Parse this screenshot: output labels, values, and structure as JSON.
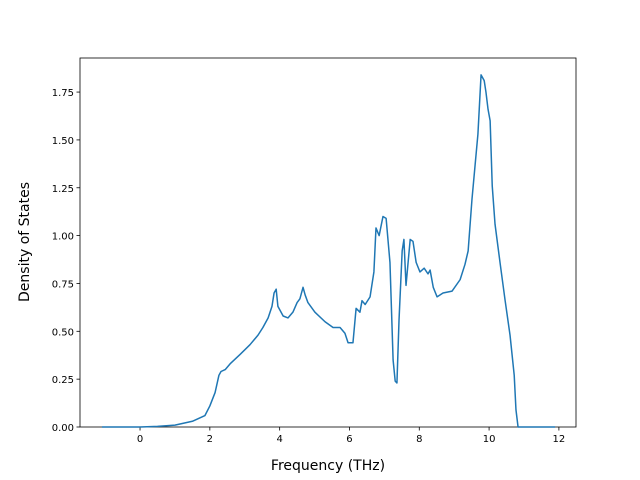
{
  "chart_data": {
    "type": "line",
    "xlabel": "Frequency (THz)",
    "ylabel": "Density of States",
    "x": [
      -1.09,
      0,
      0.5,
      1.0,
      1.5,
      1.86,
      2.0,
      2.15,
      2.26,
      2.32,
      2.44,
      2.58,
      2.87,
      3.15,
      3.38,
      3.52,
      3.67,
      3.78,
      3.84,
      3.9,
      3.95,
      4.1,
      4.24,
      4.38,
      4.5,
      4.58,
      4.67,
      4.73,
      4.81,
      5.01,
      5.3,
      5.53,
      5.73,
      5.87,
      5.96,
      6.1,
      6.19,
      6.3,
      6.36,
      6.45,
      6.59,
      6.7,
      6.76,
      6.85,
      6.96,
      7.05,
      7.16,
      7.25,
      7.31,
      7.36,
      7.42,
      7.51,
      7.56,
      7.62,
      7.74,
      7.82,
      7.91,
      8.02,
      8.14,
      8.25,
      8.31,
      8.4,
      8.51,
      8.68,
      8.94,
      9.17,
      9.31,
      9.4,
      9.51,
      9.6,
      9.68,
      9.77,
      9.86,
      9.91,
      9.97,
      10.03,
      10.09,
      10.17,
      10.32,
      10.46,
      10.6,
      10.72,
      10.77,
      10.83,
      11.89
    ],
    "series": [
      {
        "color": "#1f77b4",
        "values": [
          0,
          0,
          0.003,
          0.01,
          0.03,
          0.06,
          0.11,
          0.18,
          0.27,
          0.29,
          0.3,
          0.33,
          0.38,
          0.43,
          0.48,
          0.52,
          0.57,
          0.63,
          0.7,
          0.72,
          0.63,
          0.58,
          0.57,
          0.6,
          0.65,
          0.67,
          0.73,
          0.69,
          0.65,
          0.6,
          0.55,
          0.52,
          0.52,
          0.49,
          0.44,
          0.44,
          0.62,
          0.6,
          0.66,
          0.64,
          0.68,
          0.81,
          1.04,
          1.0,
          1.1,
          1.09,
          0.86,
          0.35,
          0.24,
          0.23,
          0.56,
          0.92,
          0.98,
          0.74,
          0.98,
          0.97,
          0.86,
          0.81,
          0.83,
          0.8,
          0.82,
          0.73,
          0.68,
          0.7,
          0.71,
          0.77,
          0.85,
          0.92,
          1.19,
          1.37,
          1.53,
          1.84,
          1.81,
          1.75,
          1.66,
          1.6,
          1.26,
          1.06,
          0.85,
          0.66,
          0.48,
          0.27,
          0.09,
          0,
          0
        ]
      }
    ],
    "xlim": [
      -1.72,
      12.49
    ],
    "ylim": [
      0,
      1.928
    ],
    "xticks": [
      0,
      2,
      4,
      6,
      8,
      10,
      12
    ],
    "yticks": [
      {
        "value": 0,
        "label": "0.00"
      },
      {
        "value": 0.25,
        "label": "0.25"
      },
      {
        "value": 0.5,
        "label": "0.50"
      },
      {
        "value": 0.75,
        "label": "0.75"
      },
      {
        "value": 1.0,
        "label": "1.00"
      },
      {
        "value": 1.25,
        "label": "1.25"
      },
      {
        "value": 1.5,
        "label": "1.50"
      },
      {
        "value": 1.75,
        "label": "1.75"
      }
    ]
  }
}
